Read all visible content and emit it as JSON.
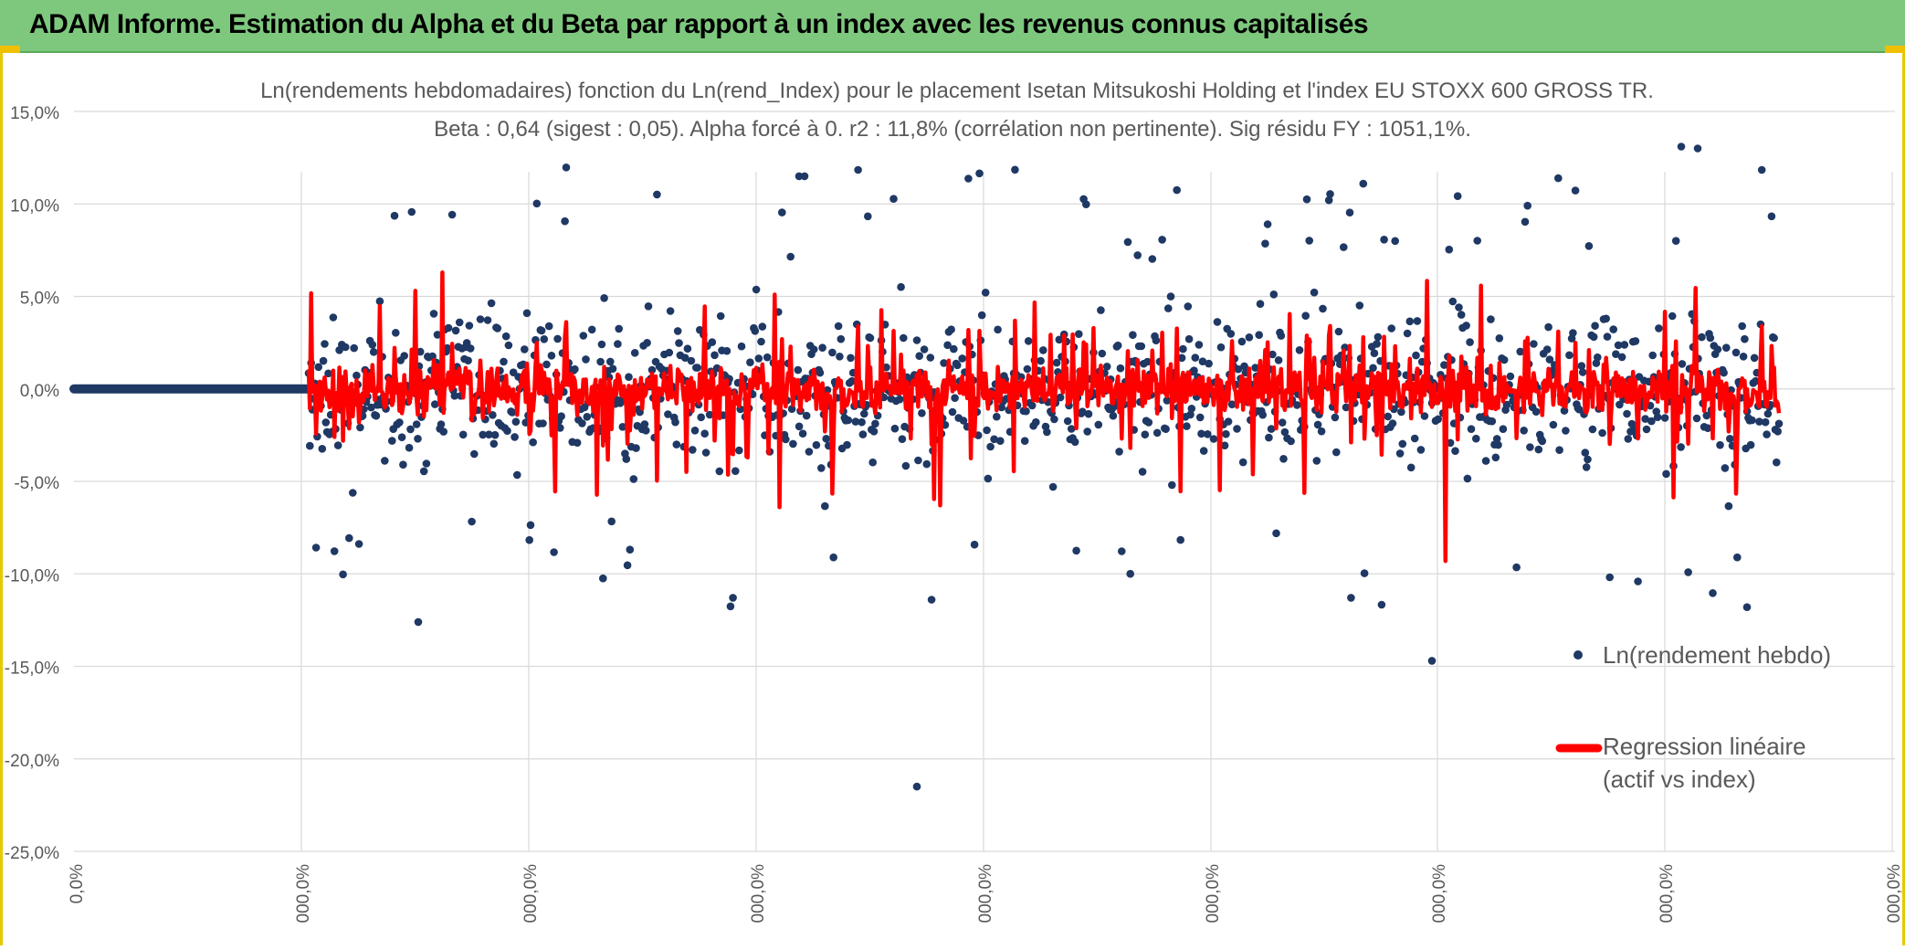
{
  "header": {
    "title": "ADAM Informe. Estimation du Alpha et du Beta par rapport à un index avec les revenus connus capitalisés"
  },
  "colors": {
    "banner": "#7ec87e",
    "points": "#1f3864",
    "regression": "#ff0000",
    "grid": "#d9d9d9",
    "frame_accent": "#e7c900"
  },
  "chart_data": {
    "type": "scatter",
    "title": "Ln(rendements hebdomadaires) fonction du Ln(rend_Index) pour le placement Isetan Mitsukoshi Holding et l'index EU STOXX 600 GROSS TR.",
    "subtitle": "Beta : 0,64 (sigest : 0,05). Alpha forcé à 0. r2 : 11,8% (corrélation non pertinente). Sig résidu FY : 1051,1%.",
    "ylim": [
      -25,
      15
    ],
    "yticks": [
      "15,0%",
      "10,0%",
      "5,0%",
      "0,0%",
      "-5,0%",
      "-10,0%",
      "-15,0%",
      "-20,0%",
      "-25,0%"
    ],
    "xtick_labels": [
      "0,0%",
      "000,0%",
      "000,0%",
      "000,0%",
      "000,0%",
      "000,0%",
      "000,0%",
      "000,0%",
      "000,0%"
    ],
    "grid": true,
    "legend_position": "right",
    "series": [
      {
        "name": "Ln(rendement hebdo)",
        "kind": "points",
        "approx_count": 1200,
        "y_range": [
          -21.5,
          13.2
        ],
        "typical_spread": [
          -10,
          10
        ]
      },
      {
        "name": "Regression linéaire (actif vs index)",
        "kind": "line",
        "beta": 0.64,
        "alpha": 0,
        "y_range": [
          -9.3,
          6.3
        ]
      }
    ],
    "legend": [
      {
        "label": "Ln(rendement hebdo)",
        "marker": "dot"
      },
      {
        "label": "Regression linéaire",
        "label2": "(actif vs index)",
        "marker": "line"
      }
    ]
  }
}
